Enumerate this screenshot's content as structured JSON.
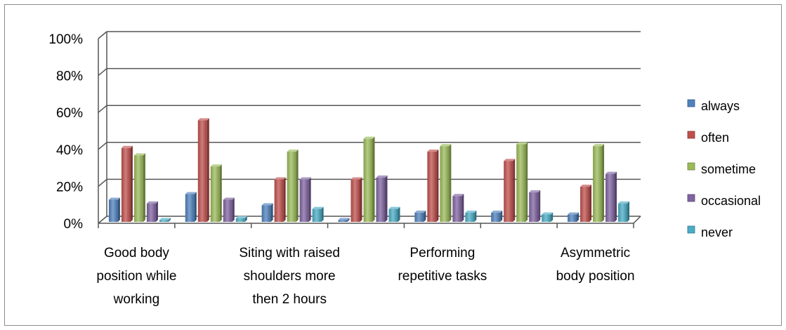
{
  "chart_data": {
    "type": "bar",
    "title": "",
    "xlabel": "",
    "ylabel": "",
    "ylim": [
      0,
      100
    ],
    "y_ticks": [
      "0%",
      "20%",
      "40%",
      "60%",
      "80%",
      "100%"
    ],
    "grid": true,
    "legend_position": "right",
    "categories": [
      "Good body position while working",
      "",
      "Siting with raised shoulders more then 2 hours",
      "",
      "Performing repetitive tasks",
      "",
      "Asymmetric body position"
    ],
    "category_label_lines": [
      [
        "Good body",
        "position while",
        "working"
      ],
      [],
      [
        "Siting with raised",
        "shoulders more",
        "then 2 hours"
      ],
      [],
      [
        "Performing",
        "repetitive tasks"
      ],
      [],
      [
        "Asymmetric",
        "body position"
      ]
    ],
    "series": [
      {
        "name": "always",
        "color": "#4f81bd",
        "values": [
          12,
          15,
          9,
          1,
          5,
          5,
          4
        ]
      },
      {
        "name": "often",
        "color": "#c0504d",
        "values": [
          40,
          55,
          23,
          23,
          38,
          33,
          19
        ]
      },
      {
        "name": "sometime",
        "color": "#9bbb59",
        "values": [
          36,
          30,
          38,
          45,
          41,
          42,
          41
        ]
      },
      {
        "name": "occasional",
        "color": "#8064a2",
        "values": [
          10,
          12,
          23,
          24,
          14,
          16,
          26
        ]
      },
      {
        "name": "never",
        "color": "#4bacc6",
        "values": [
          1,
          2,
          7,
          7,
          5,
          4,
          10
        ]
      }
    ]
  }
}
